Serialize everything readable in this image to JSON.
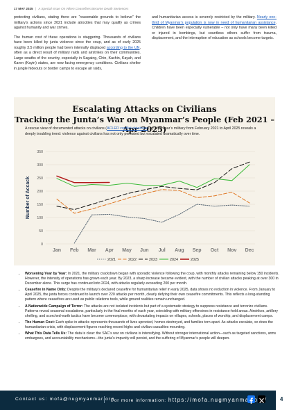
{
  "header": {
    "date": "17 MAY 2025",
    "separator": "|",
    "issue": "A Special Issue On When Ceasefires Become Death Sentences"
  },
  "intro": {
    "left": {
      "p1": "protecting civilians, stating there are “reasonable grounds to believe” the military’s actions since 2021 include atrocities that may qualify as crimes against humanity and war crimes.",
      "p2_before": "The human cost of these operations is staggering. Thousands of civilians have been killed by junta violence since the coup, and as of early 2025 roughly 3.5 million people had been internally displaced ",
      "p2_link": "according to the UN",
      "p2_after": ", often as a direct result of military raids and airstrikes on their communities. Large swaths of the country, especially in Sagaing, Chin, Kachin, Kayah, and Karen (Kayin) states, are now facing emergency conditions. Civilians shelter in jungle hideouts or border camps to escape air raids,"
    },
    "right": {
      "p1_before": "and humanitarian access is severely restricted by the military. ",
      "p1_link": "Nearly one-third of Myanmar’s population is now in need of humanitarian assistance",
      "p1_after": ". Children have been especially vulnerable – not only have many been killed or injured in bombings, but countless others suffer from trauma, displacement, and the interruption of education as schools become targets."
    }
  },
  "chart_panel": {
    "title_line1": "Escalating Attacks on Civilians",
    "title_line2": "Tracking the Junta’s War on Myanmar’s People (Feb 2021 – Apr 2025)",
    "desc_before": "A rescue view of documented attacks on civilians (",
    "desc_link": "ACLED conflict database",
    "desc_after": ") by Myanmar’s military from February 2021 to April 2025 reveals a deeply troubling trend: violence against civilians has not only persisted but escalated dramatically over time."
  },
  "chart_data": {
    "type": "line",
    "title": "",
    "xlabel": "",
    "ylabel": "Number of Accack",
    "x": [
      "Jan",
      "Feb",
      "Mar",
      "Apr",
      "May",
      "Jun",
      "Jul",
      "Aug",
      "Sep",
      "Oct",
      "Nov",
      "Dec"
    ],
    "ylim": [
      0,
      350
    ],
    "yticks": [
      0,
      50,
      100,
      150,
      200,
      250,
      300,
      350
    ],
    "grid": true,
    "legend_position": "bottom",
    "series": [
      {
        "name": "2021",
        "color": "#5b6a78",
        "dash": "1.2,1.6",
        "values": [
          null,
          3,
          110,
          112,
          102,
          96,
          82,
          112,
          150,
          143,
          147,
          143
        ]
      },
      {
        "name": "2022",
        "color": "#e07b2a",
        "dash": "5,2.5",
        "values": [
          170,
          116,
          132,
          152,
          172,
          190,
          206,
          202,
          175,
          182,
          196,
          155
        ]
      },
      {
        "name": "2023",
        "color": "#1c1c1c",
        "dash": "6,3",
        "values": [
          143,
          130,
          150,
          170,
          190,
          205,
          218,
          210,
          205,
          232,
          285,
          310
        ]
      },
      {
        "name": "2024",
        "color": "#3dbb3a",
        "dash": "",
        "values": [
          248,
          218,
          225,
          222,
          230,
          222,
          222,
          238,
          214,
          247,
          240,
          300
        ]
      },
      {
        "name": "2025",
        "color": "#b31b1b",
        "dash": "",
        "values": [
          257,
          232,
          232,
          233,
          null,
          null,
          null,
          null,
          null,
          null,
          null,
          null
        ]
      }
    ]
  },
  "bullets": [
    {
      "title": "Worsening Year by Year:",
      "text": " In 2021, the military crackdown began with sporadic violence following the coup, with monthly attacks remaining below 150 incidents. However, the intensity of operations has grown each year. By 2023, a sharp increase became evident, with the number of civilian attacks peaking at over 300 in December alone. This surge has continued into 2024, with attacks regularly exceeding 200 per month."
    },
    {
      "title": "Ceasefire in Name Only:",
      "text": " Despite the military’s declared ceasefire for humanitarian relief in early 2025, data shows no reduction in violence. From January to April 2025, the junta forces continued to launch over 220 attacks per month, clearly defying their own ceasefire commitments. This reflects a long-standing pattern where ceasefires are used as public relations tools, while ground realities remain unchanged."
    },
    {
      "title": "A Nationwide Campaign of Terror:",
      "text": " The attacks are not isolated incidents but part of a systematic strategy to suppress resistance and terrorize civilians. Patterns reveal seasonal escalations, particularly in the final months of each year, coinciding with military offensives in resistance-held areas. Airstrikes, artillery shelling, and scorched-earth tactics have become commonplace, with devastating impacts on villages, schools, places of worship, and displacement camps."
    },
    {
      "title": "The Human Cost:",
      "text": " Each spike in attacks represents thousands of lives uprooted, homes destroyed, and families torn apart. As attacks escalate, so does the humanitarian crisis, with displacement figures reaching record highs and civilian casualties mounting."
    },
    {
      "title": "What This Data Tells Us:",
      "text": " The data is clear: the SAC’s war on civilians is intensifying. Without stronger international action—such as targeted sanctions, arms embargoes, and accountability mechanisms—the junta’s impunity will persist, and the suffering of Myanmar’s people will deepen."
    }
  ],
  "footer": {
    "contact": "Contact us: mofa@nugmyanmar.org",
    "more_label": "For more information:",
    "more_url": "https://mofa.nugmyanmar.org/",
    "page_number": "4"
  },
  "icons": {
    "facebook": "facebook-icon",
    "x": "x-twitter-icon"
  }
}
